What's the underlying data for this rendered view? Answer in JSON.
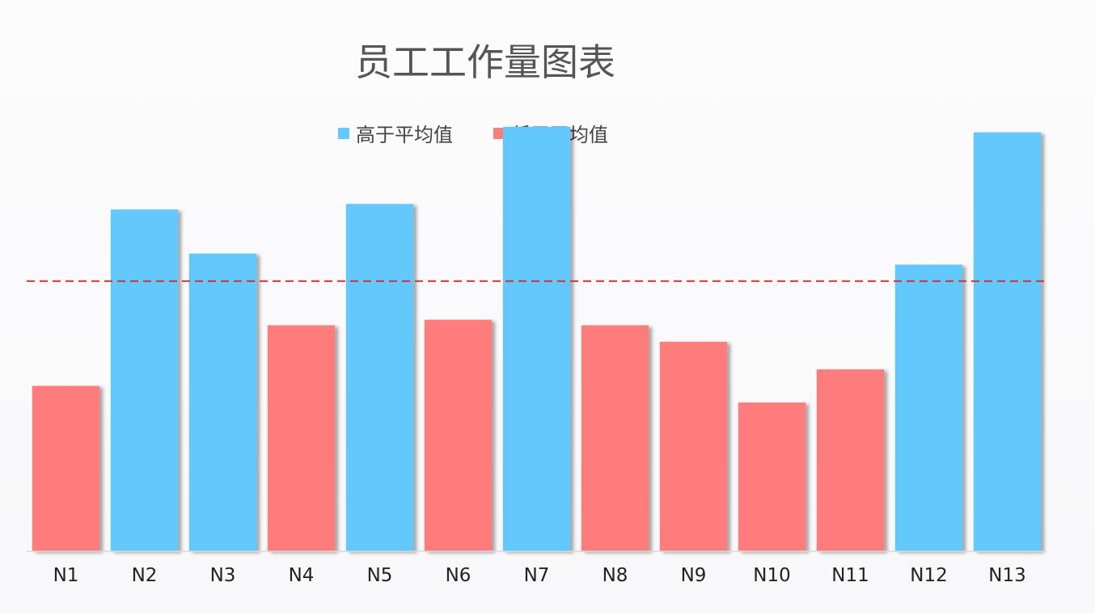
{
  "chart_data": {
    "type": "bar",
    "title": "员工工作量图表",
    "categories": [
      "N1",
      "N2",
      "N3",
      "N4",
      "N5",
      "N6",
      "N7",
      "N8",
      "N9",
      "N10",
      "N11",
      "N12",
      "N13"
    ],
    "values": [
      30,
      62,
      54,
      41,
      63,
      42,
      77,
      41,
      38,
      27,
      33,
      52,
      76
    ],
    "groups": [
      "low",
      "high",
      "high",
      "low",
      "high",
      "low",
      "high",
      "low",
      "low",
      "low",
      "low",
      "high",
      "high"
    ],
    "average": 49,
    "ylim": [
      0,
      100
    ],
    "grid": false,
    "xlabel": "",
    "ylabel": "",
    "legend": {
      "placement": "top-center",
      "items": [
        {
          "key": "high",
          "label": "高于平均值",
          "color": "#64c8fc"
        },
        {
          "key": "low",
          "label": "低于平均值",
          "color": "#ff7b7c"
        }
      ]
    },
    "average_line_color": "#d32f2f"
  }
}
